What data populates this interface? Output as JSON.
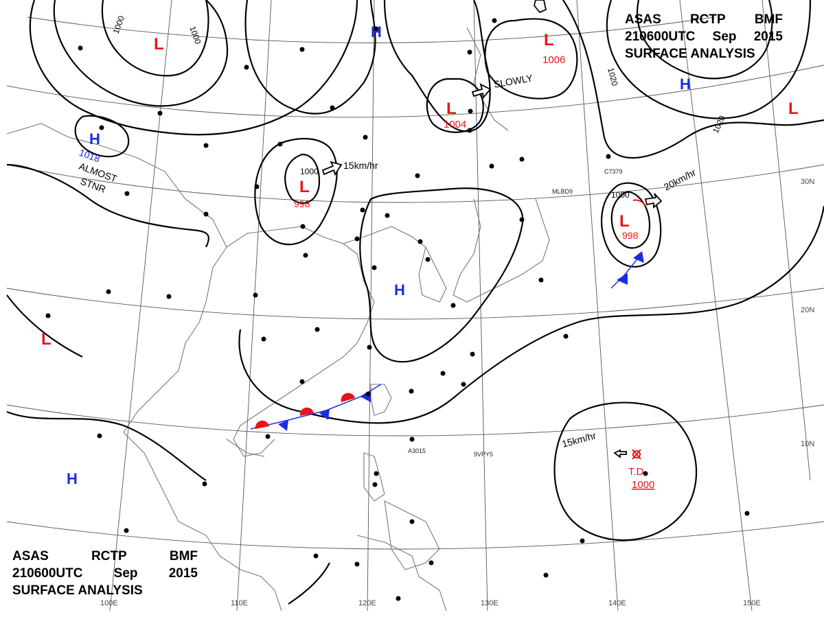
{
  "header": {
    "code": [
      "ASAS",
      "RCTP",
      "BMF"
    ],
    "valid": [
      "210600UTC",
      "Sep",
      "2015"
    ],
    "product": "SURFACE ANALYSIS"
  },
  "lat_labels": [
    "30N",
    "20N",
    "10N"
  ],
  "lon_labels": [
    "100E",
    "110E",
    "120E",
    "130E",
    "140E",
    "150E"
  ],
  "isobar_labels": [
    "1000",
    "1000",
    "1000",
    "1000",
    "1020",
    "1020"
  ],
  "systems": [
    {
      "kind": "L",
      "pressure": "",
      "color": "#e8141b"
    },
    {
      "kind": "L",
      "pressure": "1006",
      "color": "#e8141b"
    },
    {
      "kind": "L",
      "pressure": "1004",
      "color": "#e8141b"
    },
    {
      "kind": "L",
      "pressure": "998",
      "color": "#e8141b"
    },
    {
      "kind": "L",
      "pressure": "998",
      "color": "#e8141b"
    },
    {
      "kind": "L",
      "pressure": "",
      "color": "#e8141b"
    },
    {
      "kind": "L",
      "pressure": "",
      "color": "#e8141b"
    },
    {
      "kind": "H",
      "pressure": "",
      "color": "#1a2be6"
    },
    {
      "kind": "H",
      "pressure": "1018",
      "color": "#1a2be6"
    },
    {
      "kind": "H",
      "pressure": "",
      "color": "#1a2be6"
    },
    {
      "kind": "H",
      "pressure": "",
      "color": "#1a2be6"
    },
    {
      "kind": "H",
      "pressure": "",
      "color": "#1a2be6"
    }
  ],
  "tropical_depression": {
    "label": "T.D.",
    "pressure": "1000",
    "color": "#e8141b"
  },
  "motions": [
    "15km/hr",
    "SLOWLY",
    "20km/hr",
    "15km/hr",
    "ALMOST",
    "STNR"
  ],
  "stations": [
    "A3015",
    "9VPY5",
    "C7379",
    "MLBD9"
  ],
  "colors": {
    "low": "#e8141b",
    "high": "#1a2be6",
    "front_warm": "#e8141b",
    "front_cold": "#1a2be6"
  }
}
